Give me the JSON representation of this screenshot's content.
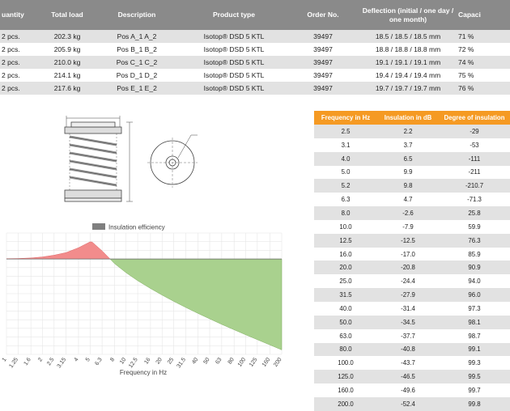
{
  "top_table": {
    "headers": {
      "quantity": "uantity",
      "total_load": "Total load",
      "description": "Description",
      "product_type": "Product type",
      "order_no": "Order No.",
      "deflection": "Deflection (initial / one day / one month)",
      "capacity": "Capaci"
    },
    "rows": [
      {
        "quantity": "2 pcs.",
        "total_load": "202.3 kg",
        "description": "Pos A_1 A_2",
        "product_type": "Isotop® DSD 5 KTL",
        "order_no": "39497",
        "deflection": "18.5 / 18.5 / 18.5 mm",
        "capacity": "71 %"
      },
      {
        "quantity": "2 pcs.",
        "total_load": "205.9 kg",
        "description": "Pos B_1 B_2",
        "product_type": "Isotop® DSD 5 KTL",
        "order_no": "39497",
        "deflection": "18.8 / 18.8 / 18.8 mm",
        "capacity": "72 %"
      },
      {
        "quantity": "2 pcs.",
        "total_load": "210.0 kg",
        "description": "Pos C_1 C_2",
        "product_type": "Isotop® DSD 5 KTL",
        "order_no": "39497",
        "deflection": "19.1 / 19.1 / 19.1 mm",
        "capacity": "74 %"
      },
      {
        "quantity": "2 pcs.",
        "total_load": "214.1 kg",
        "description": "Pos D_1 D_2",
        "product_type": "Isotop® DSD 5 KTL",
        "order_no": "39497",
        "deflection": "19.4 / 19.4 / 19.4 mm",
        "capacity": "75 %"
      },
      {
        "quantity": "2 pcs.",
        "total_load": "217.6 kg",
        "description": "Pos E_1 E_2",
        "product_type": "Isotop® DSD 5 KTL",
        "order_no": "39497",
        "deflection": "19.7 / 19.7 / 19.7 mm",
        "capacity": "76 %"
      }
    ]
  },
  "insulation_table": {
    "headers": {
      "frequency": "Frequency in Hz",
      "insulation_db": "Insulation in dB",
      "degree": "Degree of insulation"
    },
    "rows": [
      {
        "f": "2.5",
        "db": "2.2",
        "deg": "-29"
      },
      {
        "f": "3.1",
        "db": "3.7",
        "deg": "-53"
      },
      {
        "f": "4.0",
        "db": "6.5",
        "deg": "-111"
      },
      {
        "f": "5.0",
        "db": "9.9",
        "deg": "-211"
      },
      {
        "f": "5.2",
        "db": "9.8",
        "deg": "-210.7"
      },
      {
        "f": "6.3",
        "db": "4.7",
        "deg": "-71.3"
      },
      {
        "f": "8.0",
        "db": "-2.6",
        "deg": "25.8"
      },
      {
        "f": "10.0",
        "db": "-7.9",
        "deg": "59.9"
      },
      {
        "f": "12.5",
        "db": "-12.5",
        "deg": "76.3"
      },
      {
        "f": "16.0",
        "db": "-17.0",
        "deg": "85.9"
      },
      {
        "f": "20.0",
        "db": "-20.8",
        "deg": "90.9"
      },
      {
        "f": "25.0",
        "db": "-24.4",
        "deg": "94.0"
      },
      {
        "f": "31.5",
        "db": "-27.9",
        "deg": "96.0"
      },
      {
        "f": "40.0",
        "db": "-31.4",
        "deg": "97.3"
      },
      {
        "f": "50.0",
        "db": "-34.5",
        "deg": "98.1"
      },
      {
        "f": "63.0",
        "db": "-37.7",
        "deg": "98.7"
      },
      {
        "f": "80.0",
        "db": "-40.8",
        "deg": "99.1"
      },
      {
        "f": "100.0",
        "db": "-43.7",
        "deg": "99.3"
      },
      {
        "f": "125.0",
        "db": "-46.5",
        "deg": "99.5"
      },
      {
        "f": "160.0",
        "db": "-49.6",
        "deg": "99.7"
      },
      {
        "f": "200.0",
        "db": "-52.4",
        "deg": "99.8"
      }
    ]
  },
  "chart_data": {
    "type": "area",
    "legend": "Insulation efficiency",
    "xlabel": "Frequency in Hz",
    "x_tick_labels": [
      "1",
      "1.25",
      "1.6",
      "2",
      "2.5",
      "3.15",
      "4",
      "5",
      "6.3",
      "8",
      "10",
      "12.5",
      "16",
      "20",
      "25",
      "31.5",
      "40",
      "50",
      "63",
      "80",
      "100",
      "125",
      "160",
      "200"
    ],
    "x": [
      1,
      1.25,
      1.6,
      2,
      2.5,
      3.15,
      4,
      5,
      5.2,
      6.3,
      8,
      10,
      12.5,
      16,
      20,
      25,
      31.5,
      40,
      50,
      63,
      80,
      100,
      125,
      160,
      200
    ],
    "y": [
      0.2,
      0.3,
      0.6,
      1.2,
      2.2,
      3.7,
      6.5,
      9.9,
      9.8,
      4.7,
      -2.6,
      -7.9,
      -12.5,
      -17.0,
      -20.8,
      -24.4,
      -27.9,
      -31.4,
      -34.5,
      -37.7,
      -40.8,
      -43.7,
      -46.5,
      -49.6,
      -52.4
    ],
    "x_scale": "log",
    "ylim": [
      -55,
      15
    ],
    "grid": true,
    "colors": {
      "amplification": "#f28c8c",
      "insulation": "#a9d18e",
      "legend_swatch": "#7f7f7f"
    }
  }
}
